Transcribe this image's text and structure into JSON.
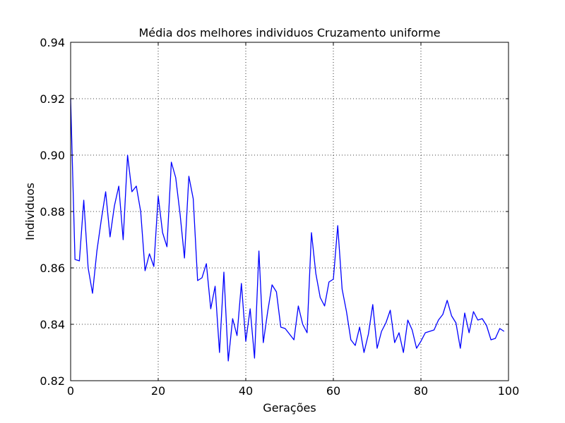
{
  "chart_data": {
    "type": "line",
    "title": "Média dos melhores individuos Cruzamento uniforme",
    "xlabel": "Gerações",
    "ylabel": "Individuos",
    "xlim": [
      0,
      100
    ],
    "ylim": [
      0.82,
      0.94
    ],
    "xticks": [
      0,
      20,
      40,
      60,
      80,
      100
    ],
    "xtick_labels": [
      "0",
      "20",
      "40",
      "60",
      "80",
      "100"
    ],
    "yticks": [
      0.82,
      0.84,
      0.86,
      0.88,
      0.9,
      0.92,
      0.94
    ],
    "ytick_labels": [
      "0.82",
      "0.84",
      "0.86",
      "0.88",
      "0.90",
      "0.92",
      "0.94"
    ],
    "grid": true,
    "series": [
      {
        "color": "#0000ff",
        "x": [
          0,
          1,
          2,
          3,
          4,
          5,
          6,
          7,
          8,
          9,
          10,
          11,
          12,
          13,
          14,
          15,
          16,
          17,
          18,
          19,
          20,
          21,
          22,
          23,
          24,
          25,
          26,
          27,
          28,
          29,
          30,
          31,
          32,
          33,
          34,
          35,
          36,
          37,
          38,
          39,
          40,
          41,
          42,
          43,
          44,
          45,
          46,
          47,
          48,
          49,
          50,
          51,
          52,
          53,
          54,
          55,
          56,
          57,
          58,
          59,
          60,
          61,
          62,
          63,
          64,
          65,
          66,
          67,
          68,
          69,
          70,
          71,
          72,
          73,
          74,
          75,
          76,
          77,
          78,
          79,
          80,
          81,
          82,
          83,
          84,
          85,
          86,
          87,
          88,
          89,
          90,
          91,
          92,
          93,
          94,
          95,
          96,
          97,
          98,
          99
        ],
        "y": [
          0.92,
          0.863,
          0.8625,
          0.884,
          0.86,
          0.851,
          0.866,
          0.877,
          0.887,
          0.871,
          0.882,
          0.889,
          0.87,
          0.9,
          0.887,
          0.889,
          0.88,
          0.859,
          0.865,
          0.8605,
          0.8855,
          0.8725,
          0.8675,
          0.8975,
          0.892,
          0.879,
          0.8635,
          0.8925,
          0.8845,
          0.8555,
          0.8565,
          0.8615,
          0.8455,
          0.8535,
          0.83,
          0.8585,
          0.827,
          0.842,
          0.836,
          0.8545,
          0.834,
          0.8455,
          0.828,
          0.866,
          0.8335,
          0.8445,
          0.854,
          0.8515,
          0.839,
          0.8385,
          0.8365,
          0.8345,
          0.8465,
          0.84,
          0.837,
          0.8725,
          0.858,
          0.8495,
          0.8465,
          0.855,
          0.856,
          0.875,
          0.8525,
          0.8445,
          0.8345,
          0.8325,
          0.839,
          0.83,
          0.8365,
          0.847,
          0.8315,
          0.8375,
          0.8405,
          0.845,
          0.8335,
          0.837,
          0.83,
          0.8415,
          0.838,
          0.8315,
          0.834,
          0.837,
          0.8375,
          0.838,
          0.8415,
          0.8435,
          0.8485,
          0.843,
          0.8405,
          0.8315,
          0.844,
          0.837,
          0.8445,
          0.8415,
          0.842,
          0.8395,
          0.8345,
          0.835,
          0.8385,
          0.8375
        ]
      }
    ]
  }
}
